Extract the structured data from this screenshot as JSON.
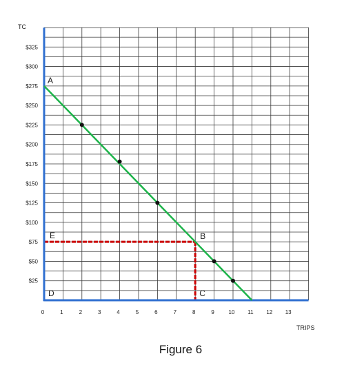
{
  "chart_data": {
    "type": "line",
    "title": "Figure 6",
    "xlabel": "TRIPS",
    "ylabel": "TC",
    "xlim": [
      0,
      14
    ],
    "ylim": [
      0,
      350
    ],
    "x_ticks": [
      "0",
      "1",
      "2",
      "3",
      "4",
      "5",
      "6",
      "7",
      "8",
      "9",
      "10",
      "11",
      "12",
      "13"
    ],
    "y_ticks": [
      {
        "value": 25,
        "label": "$25"
      },
      {
        "value": 50,
        "label": "$50"
      },
      {
        "value": 75,
        "label": "$75"
      },
      {
        "value": 100,
        "label": "$100"
      },
      {
        "value": 125,
        "label": "$125"
      },
      {
        "value": 150,
        "label": "$150"
      },
      {
        "value": 175,
        "label": "$175"
      },
      {
        "value": 200,
        "label": "$200"
      },
      {
        "value": 225,
        "label": "$225"
      },
      {
        "value": 250,
        "label": "$250"
      },
      {
        "value": 275,
        "label": "$275"
      },
      {
        "value": 300,
        "label": "$300"
      },
      {
        "value": 325,
        "label": "$325"
      }
    ],
    "grid": true,
    "series": [
      {
        "x": [
          0,
          11
        ],
        "y": [
          275,
          0
        ],
        "color": "#1db34a"
      }
    ],
    "markers": [
      {
        "x": 2,
        "y": 225
      },
      {
        "x": 4,
        "y": 178
      },
      {
        "x": 6,
        "y": 125
      },
      {
        "x": 9,
        "y": 50
      },
      {
        "x": 10,
        "y": 25
      }
    ],
    "point_labels": [
      {
        "label": "A",
        "x": 0,
        "y": 275
      },
      {
        "label": "B",
        "x": 8,
        "y": 75
      },
      {
        "label": "C",
        "x": 8,
        "y": 0
      },
      {
        "label": "D",
        "x": 0,
        "y": 0
      },
      {
        "label": "E",
        "x": 0,
        "y": 75
      }
    ],
    "guides": [
      {
        "from": [
          0,
          75
        ],
        "to": [
          8,
          75
        ],
        "color": "#cc0000"
      },
      {
        "from": [
          8,
          75
        ],
        "to": [
          8,
          0
        ],
        "color": "#cc0000"
      }
    ],
    "axis_color": "#2f6fd0"
  }
}
